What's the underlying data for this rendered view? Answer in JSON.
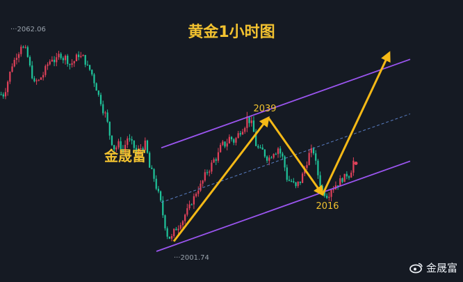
{
  "title": "黄金1小时图",
  "brand_label": "金晟富",
  "watermark": {
    "text": "金晟富",
    "icon": "weibo-icon"
  },
  "colors": {
    "background": "#151a23",
    "up_candle": "#e0415a",
    "down_candle": "#1fc39a",
    "channel_line": "#9b55f0",
    "mid_line": "#5a7fc4",
    "arrow": "#f5b916",
    "annotation_text": "#f2c230"
  },
  "chart_data": {
    "type": "candlestick",
    "instrument": "XAUUSD",
    "timeframe": "1H",
    "price_markers": {
      "high": "2062.06",
      "low": "2001.74"
    },
    "pivot_labels": [
      {
        "text": "2039",
        "price": 2039
      },
      {
        "text": "2016",
        "price": 2016
      }
    ],
    "closes": [
      2046,
      2050,
      2055,
      2058,
      2061,
      2059,
      2054,
      2049,
      2050,
      2052,
      2055,
      2057,
      2056,
      2058,
      2057,
      2055,
      2056,
      2058,
      2057,
      2054,
      2052,
      2048,
      2044,
      2040,
      2034,
      2030,
      2031,
      2029,
      2033,
      2031,
      2028,
      2030,
      2031,
      2024,
      2021,
      2016,
      2010,
      2004,
      2003,
      2006,
      2008,
      2010,
      2012,
      2015,
      2018,
      2020,
      2023,
      2025,
      2027,
      2030,
      2031,
      2033,
      2032,
      2034,
      2036,
      2039,
      2037,
      2031,
      2029,
      2028,
      2027,
      2029,
      2030,
      2027,
      2021,
      2020,
      2018,
      2020,
      2024,
      2028,
      2029,
      2022,
      2017,
      2016,
      2018,
      2019,
      2020,
      2021,
      2022,
      2026
    ],
    "channel": {
      "description": "ascending parallel channel",
      "upper_line_price_start": 2030,
      "lower_line_price_start": 1999,
      "midline": "dashed"
    },
    "arrow_path_prices": [
      2002,
      2039,
      2016,
      2048
    ],
    "ylim": [
      1994,
      2068
    ],
    "grid": false
  }
}
